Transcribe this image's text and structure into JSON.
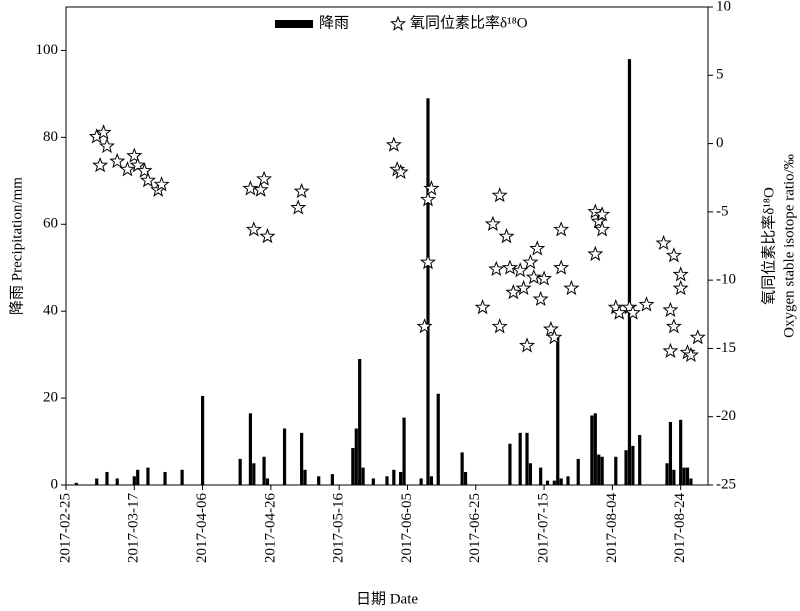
{
  "chart_data": {
    "type": "combo",
    "xlabel": "日期 Date",
    "ylabel": "降雨 Precipitation/mm",
    "y2label": [
      "氧同位素比率δ¹⁸O",
      "Oxygen stable isotope ratio/‰"
    ],
    "xlim": [
      "2017-02-25",
      "2017-09-01"
    ],
    "xticks": [
      "2017-02-25",
      "2017-03-17",
      "2017-04-06",
      "2017-04-26",
      "2017-05-16",
      "2017-06-05",
      "2017-06-25",
      "2017-07-15",
      "2017-08-04",
      "2017-08-24"
    ],
    "ylim": [
      0,
      110
    ],
    "yticks": [
      0,
      20,
      40,
      60,
      80,
      100
    ],
    "y2lim": [
      -25,
      10
    ],
    "y2ticks": [
      -25,
      -20,
      -15,
      -10,
      -5,
      0,
      5,
      10
    ],
    "legend": "top",
    "series": [
      {
        "name": "降雨",
        "type": "bar",
        "color": "#000000",
        "x": [
          "2017-02-28",
          "2017-03-06",
          "2017-03-09",
          "2017-03-12",
          "2017-03-17",
          "2017-03-18",
          "2017-03-21",
          "2017-03-26",
          "2017-03-31",
          "2017-04-06",
          "2017-04-17",
          "2017-04-20",
          "2017-04-21",
          "2017-04-24",
          "2017-04-25",
          "2017-04-30",
          "2017-05-05",
          "2017-05-06",
          "2017-05-10",
          "2017-05-14",
          "2017-05-20",
          "2017-05-21",
          "2017-05-22",
          "2017-05-23",
          "2017-05-26",
          "2017-05-30",
          "2017-06-01",
          "2017-06-03",
          "2017-06-04",
          "2017-06-09",
          "2017-06-11",
          "2017-06-12",
          "2017-06-14",
          "2017-06-21",
          "2017-06-22",
          "2017-07-05",
          "2017-07-08",
          "2017-07-10",
          "2017-07-11",
          "2017-07-14",
          "2017-07-16",
          "2017-07-18",
          "2017-07-19",
          "2017-07-20",
          "2017-07-22",
          "2017-07-25",
          "2017-07-29",
          "2017-07-30",
          "2017-07-31",
          "2017-08-01",
          "2017-08-05",
          "2017-08-08",
          "2017-08-09",
          "2017-08-10",
          "2017-08-12",
          "2017-08-20",
          "2017-08-21",
          "2017-08-22",
          "2017-08-24",
          "2017-08-25",
          "2017-08-26",
          "2017-08-27"
        ],
        "values": [
          0.5,
          1.5,
          3,
          1.5,
          2,
          3.5,
          4,
          3,
          3.5,
          20.5,
          6,
          16.5,
          5,
          6.5,
          1.5,
          13,
          12,
          3.5,
          2,
          2.5,
          8.5,
          13,
          29,
          4,
          1.5,
          2,
          3.5,
          3,
          15.5,
          1.5,
          89,
          2,
          21,
          7.5,
          3,
          9.5,
          12,
          12,
          5,
          4,
          1,
          1,
          34,
          1.5,
          2,
          6,
          16,
          16.5,
          7,
          6.5,
          6.5,
          8,
          98,
          9,
          11.5,
          5,
          14.5,
          3.5,
          15,
          4,
          4,
          1.5
        ]
      },
      {
        "name": "氧同位素比率δ¹⁸O",
        "type": "scatter",
        "marker": "star",
        "axis": "y2",
        "color": "#000000",
        "x": [
          "2017-03-06",
          "2017-03-07",
          "2017-03-08",
          "2017-03-09",
          "2017-03-12",
          "2017-03-15",
          "2017-03-17",
          "2017-03-18",
          "2017-03-20",
          "2017-03-21",
          "2017-03-24",
          "2017-03-25",
          "2017-04-20",
          "2017-04-21",
          "2017-04-23",
          "2017-04-24",
          "2017-04-25",
          "2017-05-04",
          "2017-05-05",
          "2017-06-01",
          "2017-06-02",
          "2017-06-03",
          "2017-06-10",
          "2017-06-11",
          "2017-06-11",
          "2017-06-12",
          "2017-06-27",
          "2017-06-30",
          "2017-07-01",
          "2017-07-02",
          "2017-07-02",
          "2017-07-04",
          "2017-07-05",
          "2017-07-06",
          "2017-07-08",
          "2017-07-09",
          "2017-07-10",
          "2017-07-11",
          "2017-07-12",
          "2017-07-13",
          "2017-07-14",
          "2017-07-15",
          "2017-07-17",
          "2017-07-18",
          "2017-07-20",
          "2017-07-20",
          "2017-07-23",
          "2017-07-30",
          "2017-07-30",
          "2017-07-31",
          "2017-08-01",
          "2017-08-01",
          "2017-08-05",
          "2017-08-06",
          "2017-08-09",
          "2017-08-10",
          "2017-08-14",
          "2017-08-19",
          "2017-08-21",
          "2017-08-21",
          "2017-08-22",
          "2017-08-22",
          "2017-08-24",
          "2017-08-24",
          "2017-08-26",
          "2017-08-27",
          "2017-08-29"
        ],
        "values": [
          0.5,
          -1.6,
          0.8,
          -0.2,
          -1.3,
          -1.9,
          -0.9,
          -1.6,
          -2.0,
          -2.7,
          -3.4,
          -3.0,
          -3.3,
          -6.3,
          -3.4,
          -2.6,
          -6.8,
          -4.7,
          -3.5,
          -0.1,
          -1.9,
          -2.1,
          -13.4,
          -8.7,
          -4.1,
          -3.3,
          -12.0,
          -5.9,
          -9.2,
          -3.8,
          -13.4,
          -6.8,
          -9.1,
          -10.9,
          -9.3,
          -10.6,
          -14.8,
          -8.7,
          -9.8,
          -7.7,
          -11.4,
          -9.9,
          -13.6,
          -14.2,
          -6.3,
          -9.1,
          -10.6,
          -8.1,
          -5.0,
          -5.7,
          -6.3,
          -5.2,
          -12.0,
          -12.4,
          -12.0,
          -12.4,
          -11.8,
          -7.3,
          -12.2,
          -15.2,
          -13.4,
          -8.2,
          -9.6,
          -10.6,
          -15.3,
          -15.5,
          -14.2
        ]
      }
    ]
  }
}
